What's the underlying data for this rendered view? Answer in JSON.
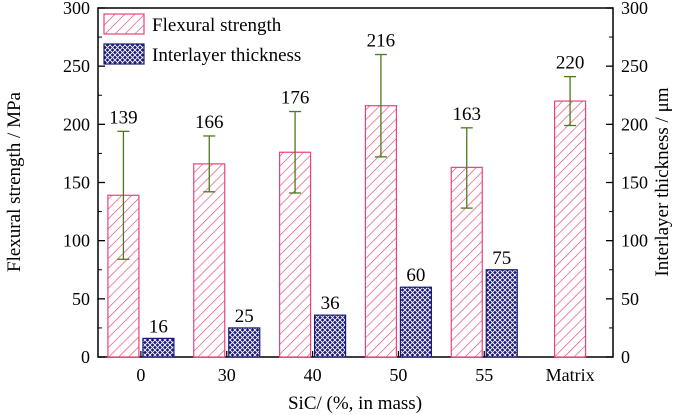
{
  "chart_data": {
    "type": "bar",
    "categories": [
      "0",
      "30",
      "40",
      "50",
      "55",
      "Matrix"
    ],
    "xlabel": "SiC/ (%, in mass)",
    "ylabel_left": "Flexural strength / MPa",
    "ylabel_right": "Interlayer thickness / μm",
    "ylim_left": [
      0,
      300
    ],
    "ylim_right": [
      0,
      300
    ],
    "yticks_left": [
      "0",
      "50",
      "100",
      "150",
      "200",
      "250",
      "300"
    ],
    "yticks_right": [
      "0",
      "50",
      "100",
      "150",
      "200",
      "250",
      "300"
    ],
    "legend_position": "top-left",
    "grid": false,
    "series": [
      {
        "name": "Flexural strength",
        "axis": "left",
        "color": "#e8437a",
        "pattern": "diagonal-hatch",
        "values": [
          139,
          166,
          176,
          216,
          163,
          220
        ],
        "labels": [
          "139",
          "166",
          "176",
          "216",
          "163",
          "220"
        ],
        "error_low": [
          84,
          142,
          141,
          172,
          128,
          199
        ],
        "error_high": [
          194,
          190,
          211,
          260,
          197,
          241
        ]
      },
      {
        "name": "Interlayer thickness",
        "axis": "right",
        "color": "#1a1a7a",
        "pattern": "crosshatch",
        "values": [
          16,
          25,
          36,
          60,
          75,
          null
        ],
        "labels": [
          "16",
          "25",
          "36",
          "60",
          "75",
          ""
        ]
      }
    ],
    "error_bar_color": "#4a7a1e"
  }
}
